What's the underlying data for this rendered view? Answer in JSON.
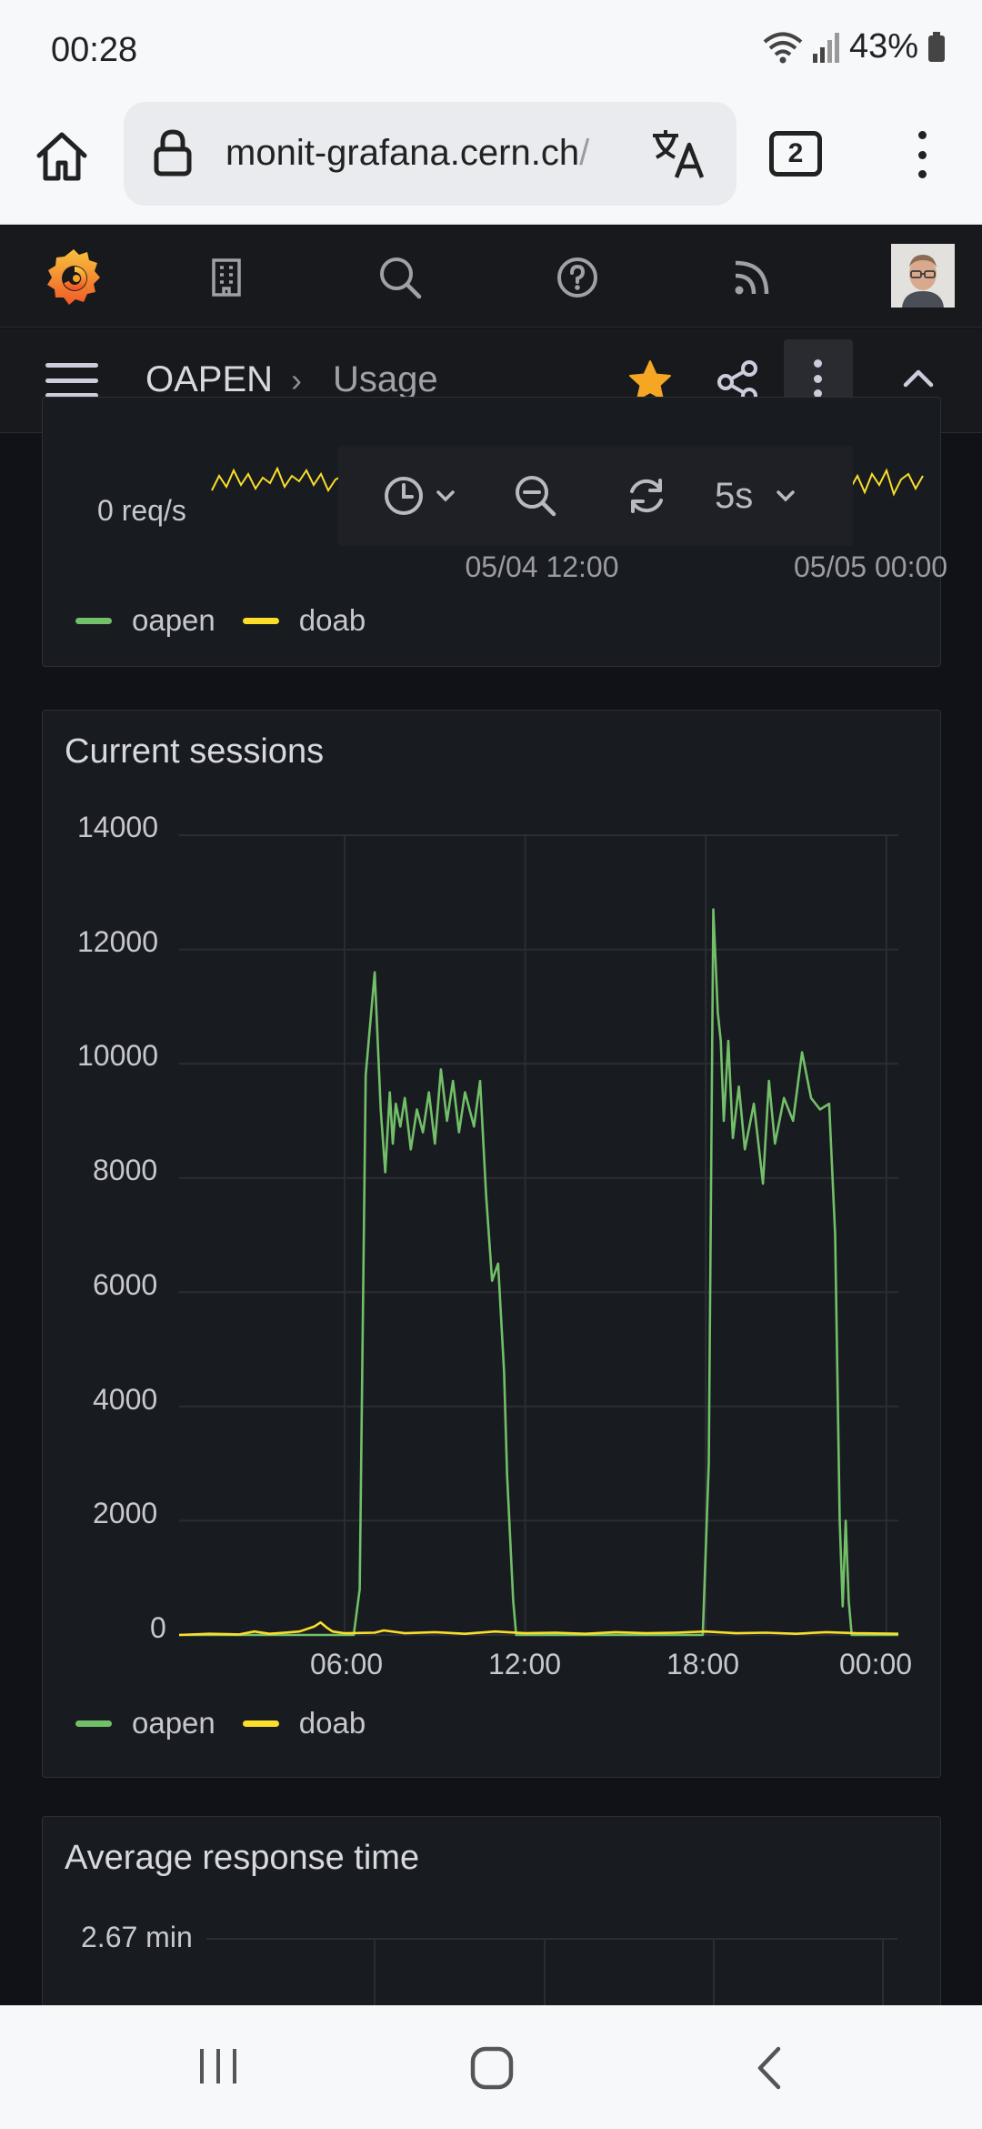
{
  "status_bar": {
    "time": "00:28",
    "battery": "43%"
  },
  "browser": {
    "url_host": "monit-grafana.cern.ch",
    "url_rest": "/",
    "tab_count": "2"
  },
  "breadcrumb": {
    "parent": "OAPEN",
    "separator": "›",
    "current": "Usage"
  },
  "time_toolbar": {
    "refresh_interval": "5s"
  },
  "colors": {
    "oapen": "#73bf69",
    "doab": "#fade2a",
    "accent": "#f05a28",
    "star": "#f5a623"
  },
  "panels": {
    "requests": {
      "y_zero_label": "0 req/s",
      "x_labels": [
        "05/04 12:00",
        "05/05 00:00"
      ],
      "legend": [
        "oapen",
        "doab"
      ]
    },
    "sessions": {
      "title": "Current sessions",
      "legend": [
        "oapen",
        "doab"
      ]
    },
    "response_time": {
      "title": "Average response time",
      "y_top_label": "2.67 min"
    }
  },
  "chart_data": {
    "type": "line",
    "title": "Current sessions",
    "xlabel": "",
    "ylabel": "",
    "ylim": [
      0,
      14000
    ],
    "y_ticks": [
      "14000",
      "12000",
      "10000",
      "8000",
      "6000",
      "4000",
      "2000",
      "0"
    ],
    "x_ticks": [
      "06:00",
      "12:00",
      "18:00",
      "00:00"
    ],
    "x_tick_hours": [
      6,
      12,
      18,
      24
    ],
    "xlim_hours": [
      0.5,
      24.4
    ],
    "grid": true,
    "legend_position": "bottom-left",
    "series": [
      {
        "name": "oapen",
        "color": "#73bf69",
        "x": [
          0.5,
          6.3,
          6.5,
          6.7,
          6.9,
          7.0,
          7.1,
          7.2,
          7.35,
          7.5,
          7.6,
          7.7,
          7.85,
          8.0,
          8.2,
          8.4,
          8.6,
          8.8,
          9.0,
          9.2,
          9.4,
          9.6,
          9.8,
          10.0,
          10.3,
          10.5,
          10.7,
          10.9,
          11.1,
          11.3,
          11.4,
          11.6,
          11.7,
          11.8,
          12.0,
          12.2,
          15.0,
          17.9,
          18.1,
          18.25,
          18.4,
          18.5,
          18.6,
          18.75,
          18.9,
          19.1,
          19.3,
          19.6,
          19.9,
          20.1,
          20.3,
          20.6,
          20.9,
          21.2,
          21.5,
          21.8,
          22.1,
          22.3,
          22.45,
          22.55,
          22.65,
          22.75,
          22.85,
          22.95,
          23.1,
          24.4
        ],
        "y": [
          0,
          0,
          800,
          9800,
          11000,
          11600,
          10400,
          9200,
          8100,
          9500,
          8600,
          9300,
          8900,
          9400,
          8500,
          9200,
          8800,
          9500,
          8600,
          9900,
          9000,
          9700,
          8800,
          9500,
          8900,
          9700,
          7700,
          6200,
          6500,
          4600,
          2800,
          600,
          0,
          0,
          0,
          0,
          0,
          0,
          3000,
          12700,
          10900,
          10400,
          9000,
          10400,
          8700,
          9600,
          8500,
          9300,
          7900,
          9700,
          8600,
          9400,
          9000,
          10200,
          9400,
          9200,
          9300,
          7000,
          2000,
          500,
          2000,
          600,
          0,
          0,
          0,
          0
        ]
      },
      {
        "name": "doab",
        "color": "#fade2a",
        "x": [
          0.5,
          1.5,
          2.5,
          3.0,
          3.5,
          4.0,
          4.5,
          5.0,
          5.2,
          5.4,
          5.6,
          6.0,
          7.0,
          7.3,
          8.0,
          9.0,
          10.0,
          11.0,
          12.0,
          13.0,
          14.0,
          15.0,
          16.0,
          17.0,
          18.0,
          19.0,
          20.0,
          21.0,
          22.0,
          23.0,
          24.4
        ],
        "y": [
          0,
          20,
          10,
          60,
          20,
          40,
          60,
          150,
          220,
          130,
          60,
          30,
          40,
          80,
          30,
          50,
          20,
          60,
          30,
          40,
          20,
          50,
          30,
          40,
          60,
          30,
          40,
          20,
          50,
          30,
          20
        ]
      }
    ]
  }
}
